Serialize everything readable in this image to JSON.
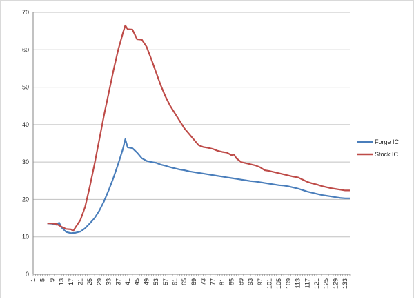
{
  "chart_data": {
    "type": "line",
    "title": "",
    "xlabel": "",
    "ylabel": "",
    "ylim": [
      0,
      70
    ],
    "ytick_step": 10,
    "xlim": [
      1,
      135
    ],
    "xticks": [
      1,
      5,
      9,
      13,
      17,
      21,
      25,
      29,
      33,
      37,
      41,
      45,
      49,
      53,
      57,
      61,
      65,
      69,
      73,
      77,
      81,
      85,
      89,
      93,
      97,
      101,
      105,
      109,
      113,
      117,
      121,
      125,
      129,
      133
    ],
    "grid": "horizontal",
    "legend": "right",
    "series": [
      {
        "name": "Forge IC",
        "color": "#4a7ebb",
        "points": [
          [
            7,
            13.6
          ],
          [
            9,
            13.5
          ],
          [
            11,
            13.2
          ],
          [
            12,
            13.8
          ],
          [
            13,
            12.5
          ],
          [
            15,
            11.3
          ],
          [
            17,
            11.0
          ],
          [
            19,
            11.1
          ],
          [
            21,
            11.4
          ],
          [
            23,
            12.3
          ],
          [
            25,
            13.6
          ],
          [
            27,
            15.0
          ],
          [
            29,
            17.0
          ],
          [
            31,
            19.5
          ],
          [
            33,
            22.5
          ],
          [
            35,
            25.8
          ],
          [
            37,
            29.5
          ],
          [
            39,
            33.5
          ],
          [
            40,
            36.1
          ],
          [
            41,
            33.9
          ],
          [
            43,
            33.7
          ],
          [
            45,
            32.5
          ],
          [
            47,
            31.0
          ],
          [
            49,
            30.3
          ],
          [
            51,
            30.0
          ],
          [
            53,
            29.8
          ],
          [
            55,
            29.3
          ],
          [
            57,
            29.0
          ],
          [
            59,
            28.6
          ],
          [
            61,
            28.3
          ],
          [
            63,
            28.0
          ],
          [
            65,
            27.8
          ],
          [
            67,
            27.5
          ],
          [
            69,
            27.3
          ],
          [
            71,
            27.1
          ],
          [
            73,
            26.9
          ],
          [
            75,
            26.7
          ],
          [
            77,
            26.5
          ],
          [
            79,
            26.3
          ],
          [
            81,
            26.1
          ],
          [
            83,
            25.9
          ],
          [
            85,
            25.7
          ],
          [
            87,
            25.5
          ],
          [
            89,
            25.3
          ],
          [
            91,
            25.1
          ],
          [
            93,
            24.9
          ],
          [
            95,
            24.8
          ],
          [
            97,
            24.6
          ],
          [
            99,
            24.4
          ],
          [
            101,
            24.2
          ],
          [
            103,
            24.0
          ],
          [
            105,
            23.8
          ],
          [
            107,
            23.7
          ],
          [
            109,
            23.5
          ],
          [
            111,
            23.2
          ],
          [
            113,
            22.9
          ],
          [
            115,
            22.5
          ],
          [
            117,
            22.1
          ],
          [
            119,
            21.8
          ],
          [
            121,
            21.5
          ],
          [
            123,
            21.2
          ],
          [
            125,
            21.0
          ],
          [
            127,
            20.8
          ],
          [
            129,
            20.6
          ],
          [
            131,
            20.4
          ],
          [
            133,
            20.3
          ],
          [
            135,
            20.3
          ]
        ]
      },
      {
        "name": "Stock IC",
        "color": "#be4b48",
        "points": [
          [
            7,
            13.6
          ],
          [
            9,
            13.6
          ],
          [
            11,
            13.4
          ],
          [
            13,
            12.7
          ],
          [
            15,
            12.1
          ],
          [
            17,
            12.0
          ],
          [
            18,
            11.6
          ],
          [
            19,
            12.6
          ],
          [
            21,
            14.5
          ],
          [
            23,
            18.0
          ],
          [
            25,
            23.5
          ],
          [
            27,
            29.5
          ],
          [
            29,
            36.0
          ],
          [
            31,
            42.5
          ],
          [
            33,
            48.5
          ],
          [
            35,
            54.5
          ],
          [
            37,
            60.0
          ],
          [
            39,
            64.5
          ],
          [
            40,
            66.5
          ],
          [
            41,
            65.5
          ],
          [
            43,
            65.4
          ],
          [
            45,
            62.8
          ],
          [
            47,
            62.7
          ],
          [
            49,
            60.8
          ],
          [
            51,
            57.5
          ],
          [
            53,
            54.0
          ],
          [
            55,
            50.5
          ],
          [
            57,
            47.5
          ],
          [
            59,
            45.0
          ],
          [
            61,
            43.0
          ],
          [
            63,
            41.0
          ],
          [
            65,
            39.0
          ],
          [
            67,
            37.5
          ],
          [
            69,
            36.0
          ],
          [
            71,
            34.5
          ],
          [
            73,
            34.0
          ],
          [
            75,
            33.8
          ],
          [
            77,
            33.5
          ],
          [
            79,
            33.0
          ],
          [
            81,
            32.7
          ],
          [
            83,
            32.5
          ],
          [
            85,
            31.8
          ],
          [
            86,
            32.0
          ],
          [
            87,
            31.0
          ],
          [
            89,
            30.0
          ],
          [
            91,
            29.7
          ],
          [
            93,
            29.4
          ],
          [
            95,
            29.1
          ],
          [
            97,
            28.6
          ],
          [
            99,
            27.8
          ],
          [
            101,
            27.6
          ],
          [
            103,
            27.3
          ],
          [
            105,
            27.0
          ],
          [
            107,
            26.7
          ],
          [
            109,
            26.4
          ],
          [
            111,
            26.1
          ],
          [
            113,
            25.9
          ],
          [
            115,
            25.3
          ],
          [
            117,
            24.7
          ],
          [
            119,
            24.3
          ],
          [
            121,
            24.0
          ],
          [
            123,
            23.6
          ],
          [
            125,
            23.3
          ],
          [
            127,
            23.0
          ],
          [
            129,
            22.8
          ],
          [
            131,
            22.6
          ],
          [
            133,
            22.4
          ],
          [
            135,
            22.4
          ]
        ]
      }
    ]
  }
}
